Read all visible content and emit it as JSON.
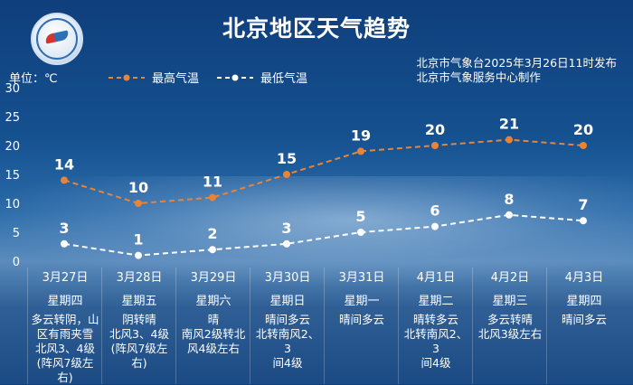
{
  "title": "北京地区天气趋势",
  "unit_label": "单位：℃",
  "legend": {
    "high": "最高气温",
    "low": "最低气温"
  },
  "source": {
    "line1": "北京市气象台2025年3月26日11时发布",
    "line2": "北京市气象服务中心制作"
  },
  "colors": {
    "high": "#e8843a",
    "low": "#ffffff",
    "text": "#ffffff"
  },
  "icons": {
    "logo": "meteorological-service-logo"
  },
  "days": [
    {
      "date": "3月27日",
      "weekday": "星期四",
      "desc": "多云转阴，山\n区有雨夹雪\n北风3、4级\n(阵风7级左\n右)"
    },
    {
      "date": "3月28日",
      "weekday": "星期五",
      "desc": "阴转晴\n北风3、4级\n(阵风7级左\n右)"
    },
    {
      "date": "3月29日",
      "weekday": "星期六",
      "desc": "晴\n南风2级转北\n风4级左右"
    },
    {
      "date": "3月30日",
      "weekday": "星期日",
      "desc": "晴间多云\n北转南风2、3\n间4级"
    },
    {
      "date": "3月31日",
      "weekday": "星期一",
      "desc": "晴间多云"
    },
    {
      "date": "4月1日",
      "weekday": "星期二",
      "desc": "晴转多云\n北转南风2、3\n间4级"
    },
    {
      "date": "4月2日",
      "weekday": "星期三",
      "desc": "多云转晴\n北风3级左右"
    },
    {
      "date": "4月3日",
      "weekday": "星期四",
      "desc": "晴间多云"
    }
  ],
  "chart_data": {
    "type": "line",
    "categories": [
      "3月27日",
      "3月28日",
      "3月29日",
      "3月30日",
      "3月31日",
      "4月1日",
      "4月2日",
      "4月3日"
    ],
    "series": [
      {
        "name": "最高气温",
        "values": [
          14,
          10,
          11,
          15,
          19,
          20,
          21,
          20
        ],
        "color": "#e8843a",
        "style": "dashed"
      },
      {
        "name": "最低气温",
        "values": [
          3,
          1,
          2,
          3,
          5,
          6,
          8,
          7
        ],
        "color": "#ffffff",
        "style": "dashed"
      }
    ],
    "ylim": [
      0,
      30
    ],
    "yticks": [
      0,
      5,
      10,
      15,
      20,
      25,
      30
    ],
    "grid": false,
    "legend": "top-left",
    "data_labels": true
  }
}
